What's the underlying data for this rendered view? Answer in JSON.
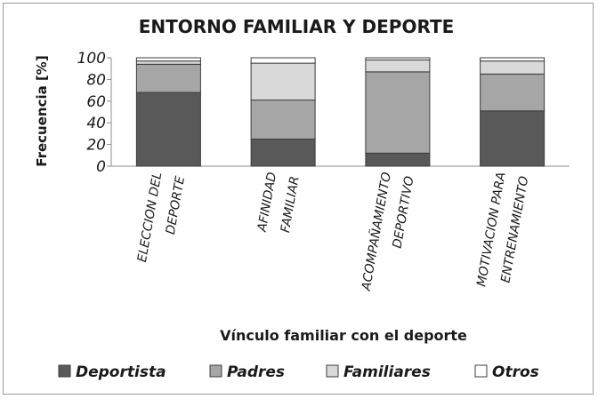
{
  "chart_data": {
    "type": "bar",
    "stacked": true,
    "title": "ENTORNO FAMILIAR Y DEPORTE",
    "xlabel": "Vínculo familiar con el deporte",
    "ylabel": "Frecuencia [%]",
    "ylim": [
      0,
      100
    ],
    "yticks": [
      0,
      20,
      40,
      60,
      80,
      100
    ],
    "grid": false,
    "legend_position": "bottom",
    "categories": [
      [
        "ELECCION DEL",
        "DEPORTE"
      ],
      [
        "AFINIDAD",
        "FAMILIAR"
      ],
      [
        "ACOMPAÑAMIENTO",
        "DEPORTIVO"
      ],
      [
        "MOTIVACION PARA",
        "ENTRENAMIENTO"
      ]
    ],
    "series": [
      {
        "name": "Deportista",
        "color": "#595959",
        "values": [
          68,
          25,
          12,
          51
        ]
      },
      {
        "name": "Padres",
        "color": "#a6a6a6",
        "values": [
          26,
          36,
          75,
          34
        ]
      },
      {
        "name": "Familiares",
        "color": "#d9d9d9",
        "values": [
          3,
          34,
          11,
          12
        ]
      },
      {
        "name": "Otros",
        "color": "#ffffff",
        "values": [
          3,
          5,
          2,
          3
        ]
      }
    ]
  }
}
